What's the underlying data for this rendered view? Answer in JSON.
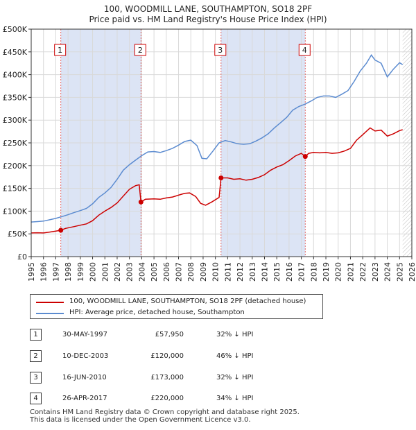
{
  "chart_data": {
    "type": "line",
    "title": "100, WOODMILL LANE, SOUTHAMPTON, SO18 2PF",
    "subtitle": "Price paid vs. HM Land Registry's House Price Index (HPI)",
    "x_ticks": [
      "1995",
      "1996",
      "1997",
      "1998",
      "1999",
      "2000",
      "2001",
      "2002",
      "2003",
      "2004",
      "2005",
      "2006",
      "2007",
      "2008",
      "2009",
      "2010",
      "2011",
      "2012",
      "2013",
      "2014",
      "2015",
      "2016",
      "2017",
      "2018",
      "2019",
      "2020",
      "2021",
      "2022",
      "2023",
      "2024",
      "2025",
      "2026"
    ],
    "y_ticks": [
      "£0",
      "£50K",
      "£100K",
      "£150K",
      "£200K",
      "£250K",
      "£300K",
      "£350K",
      "£400K",
      "£450K",
      "£500K"
    ],
    "xlim": [
      1995,
      2026
    ],
    "ylim": [
      0,
      500000
    ],
    "grid": true,
    "shaded_periods": [
      [
        1997.41,
        2003.94
      ],
      [
        2010.46,
        2017.32
      ]
    ],
    "future_hatch_from": 2025.25,
    "series": [
      {
        "name": "100, WOODMILL LANE, SOUTHAMPTON, SO18 2PF (detached house)",
        "color": "#cc0000",
        "points": [
          [
            1995.0,
            52000
          ],
          [
            1995.5,
            52500
          ],
          [
            1996.0,
            52000
          ],
          [
            1996.5,
            54000
          ],
          [
            1997.0,
            56000
          ],
          [
            1997.41,
            57950
          ],
          [
            1997.8,
            62000
          ],
          [
            1998.5,
            66000
          ],
          [
            1999.0,
            69000
          ],
          [
            1999.5,
            72000
          ],
          [
            2000.0,
            79000
          ],
          [
            2000.5,
            91000
          ],
          [
            2001.0,
            100000
          ],
          [
            2001.5,
            108000
          ],
          [
            2002.0,
            118000
          ],
          [
            2002.5,
            133000
          ],
          [
            2003.0,
            148000
          ],
          [
            2003.5,
            156000
          ],
          [
            2003.8,
            158000
          ],
          [
            2003.94,
            120000
          ],
          [
            2004.3,
            126000
          ],
          [
            2005.0,
            127000
          ],
          [
            2005.5,
            126000
          ],
          [
            2006.0,
            129000
          ],
          [
            2006.5,
            131000
          ],
          [
            2007.0,
            135000
          ],
          [
            2007.5,
            139000
          ],
          [
            2007.9,
            140000
          ],
          [
            2008.4,
            132000
          ],
          [
            2008.8,
            117000
          ],
          [
            2009.2,
            113000
          ],
          [
            2009.7,
            120000
          ],
          [
            2010.3,
            130000
          ],
          [
            2010.46,
            173000
          ],
          [
            2011.0,
            173000
          ],
          [
            2011.5,
            170000
          ],
          [
            2012.0,
            171000
          ],
          [
            2012.5,
            168000
          ],
          [
            2013.0,
            170000
          ],
          [
            2013.5,
            174000
          ],
          [
            2014.0,
            180000
          ],
          [
            2014.5,
            190000
          ],
          [
            2015.0,
            197000
          ],
          [
            2015.5,
            202000
          ],
          [
            2016.0,
            211000
          ],
          [
            2016.5,
            221000
          ],
          [
            2017.0,
            227000
          ],
          [
            2017.32,
            220000
          ],
          [
            2017.6,
            227000
          ],
          [
            2018.0,
            229000
          ],
          [
            2018.5,
            228000
          ],
          [
            2019.0,
            229000
          ],
          [
            2019.5,
            227000
          ],
          [
            2020.0,
            228000
          ],
          [
            2020.5,
            232000
          ],
          [
            2021.0,
            238000
          ],
          [
            2021.5,
            256000
          ],
          [
            2022.0,
            268000
          ],
          [
            2022.6,
            283000
          ],
          [
            2023.0,
            276000
          ],
          [
            2023.5,
            278000
          ],
          [
            2024.0,
            265000
          ],
          [
            2024.5,
            270000
          ],
          [
            2025.0,
            277000
          ],
          [
            2025.25,
            279000
          ]
        ]
      },
      {
        "name": "HPI: Average price, detached house, Southampton",
        "color": "#5b8bd0",
        "points": [
          [
            1995.0,
            76000
          ],
          [
            1995.5,
            77000
          ],
          [
            1996.0,
            78000
          ],
          [
            1996.5,
            81000
          ],
          [
            1997.0,
            84000
          ],
          [
            1997.5,
            88000
          ],
          [
            1998.0,
            92000
          ],
          [
            1998.5,
            97000
          ],
          [
            1999.0,
            101000
          ],
          [
            1999.5,
            106000
          ],
          [
            2000.0,
            116000
          ],
          [
            2000.5,
            130000
          ],
          [
            2001.0,
            140000
          ],
          [
            2001.5,
            152000
          ],
          [
            2002.0,
            170000
          ],
          [
            2002.5,
            190000
          ],
          [
            2003.0,
            202000
          ],
          [
            2003.5,
            212000
          ],
          [
            2004.0,
            222000
          ],
          [
            2004.5,
            230000
          ],
          [
            2005.0,
            231000
          ],
          [
            2005.5,
            229000
          ],
          [
            2006.0,
            233000
          ],
          [
            2006.5,
            238000
          ],
          [
            2007.0,
            245000
          ],
          [
            2007.5,
            253000
          ],
          [
            2008.0,
            256000
          ],
          [
            2008.5,
            244000
          ],
          [
            2008.9,
            216000
          ],
          [
            2009.3,
            215000
          ],
          [
            2009.8,
            232000
          ],
          [
            2010.3,
            250000
          ],
          [
            2010.8,
            255000
          ],
          [
            2011.3,
            252000
          ],
          [
            2011.8,
            248000
          ],
          [
            2012.3,
            247000
          ],
          [
            2012.8,
            248000
          ],
          [
            2013.3,
            254000
          ],
          [
            2013.8,
            261000
          ],
          [
            2014.3,
            270000
          ],
          [
            2014.8,
            283000
          ],
          [
            2015.3,
            294000
          ],
          [
            2015.8,
            306000
          ],
          [
            2016.3,
            322000
          ],
          [
            2016.8,
            330000
          ],
          [
            2017.3,
            335000
          ],
          [
            2017.8,
            342000
          ],
          [
            2018.3,
            350000
          ],
          [
            2018.8,
            353000
          ],
          [
            2019.3,
            353000
          ],
          [
            2019.8,
            350000
          ],
          [
            2020.3,
            357000
          ],
          [
            2020.8,
            365000
          ],
          [
            2021.3,
            385000
          ],
          [
            2021.8,
            408000
          ],
          [
            2022.3,
            425000
          ],
          [
            2022.7,
            443000
          ],
          [
            2023.0,
            432000
          ],
          [
            2023.5,
            425000
          ],
          [
            2024.0,
            395000
          ],
          [
            2024.5,
            412000
          ],
          [
            2025.0,
            426000
          ],
          [
            2025.25,
            422000
          ]
        ]
      }
    ],
    "markers": [
      {
        "label": "1",
        "x": 1997.41,
        "y": 57950
      },
      {
        "label": "2",
        "x": 2003.94,
        "y": 120000
      },
      {
        "label": "3",
        "x": 2010.46,
        "y": 173000
      },
      {
        "label": "4",
        "x": 2017.32,
        "y": 220000
      }
    ]
  },
  "legend": {
    "items": [
      {
        "label": "100, WOODMILL LANE, SOUTHAMPTON, SO18 2PF (detached house)",
        "color": "#cc0000"
      },
      {
        "label": "HPI: Average price, detached house, Southampton",
        "color": "#5b8bd0"
      }
    ]
  },
  "transactions": [
    {
      "num": "1",
      "date": "30-MAY-1997",
      "price": "£57,950",
      "hpi": "32% ↓ HPI"
    },
    {
      "num": "2",
      "date": "10-DEC-2003",
      "price": "£120,000",
      "hpi": "46% ↓ HPI"
    },
    {
      "num": "3",
      "date": "16-JUN-2010",
      "price": "£173,000",
      "hpi": "32% ↓ HPI"
    },
    {
      "num": "4",
      "date": "26-APR-2017",
      "price": "£220,000",
      "hpi": "34% ↓ HPI"
    }
  ],
  "footer": {
    "line1": "Contains HM Land Registry data © Crown copyright and database right 2025.",
    "line2": "This data is licensed under the Open Government Licence v3.0."
  }
}
